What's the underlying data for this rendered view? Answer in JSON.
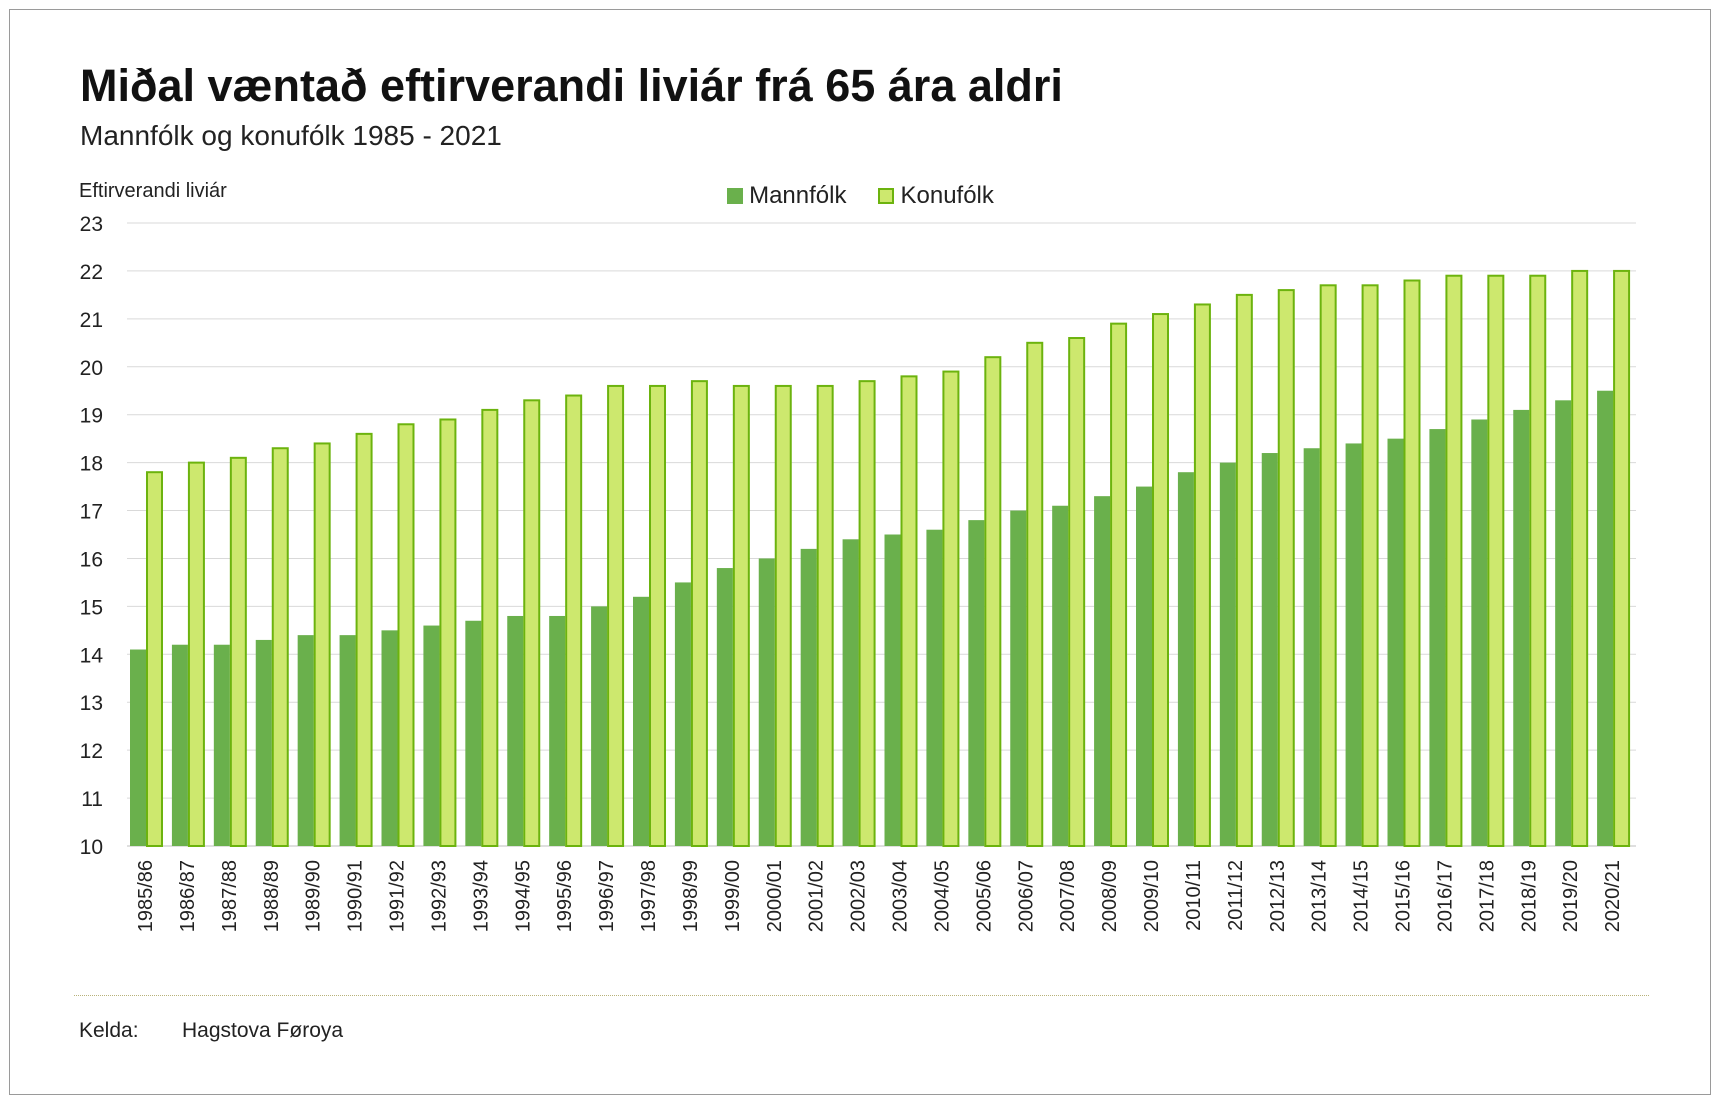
{
  "header": {
    "title": "Miðal væntað eftirverandi liviár frá 65 ára aldri",
    "subtitle": "Mannfólk og konufólk 1985 - 2021"
  },
  "footer": {
    "source_label": "Kelda:",
    "source_value": "Hagstova Føroya"
  },
  "colors": {
    "men": "#6ab04c",
    "women_fill": "#cde86e",
    "women_border": "#6cb30e",
    "grid": "#d9d9d9"
  },
  "chart_data": {
    "type": "bar",
    "title": "Miðal væntað eftirverandi liviár frá 65 ára aldri",
    "subtitle": "Mannfólk og konufólk 1985 - 2021",
    "ylabel": "Eftirverandi liviár",
    "xlabel": "",
    "ylim": [
      10,
      23
    ],
    "yticks": [
      "10",
      "11",
      "12",
      "13",
      "14",
      "15",
      "16",
      "17",
      "18",
      "19",
      "20",
      "21",
      "22",
      "23"
    ],
    "grid": true,
    "legend_position": "top-center",
    "categories": [
      "1985/86",
      "1986/87",
      "1987/88",
      "1988/89",
      "1989/90",
      "1990/91",
      "1991/92",
      "1992/93",
      "1993/94",
      "1994/95",
      "1995/96",
      "1996/97",
      "1997/98",
      "1998/99",
      "1999/00",
      "2000/01",
      "2001/02",
      "2002/03",
      "2003/04",
      "2004/05",
      "2005/06",
      "2006/07",
      "2007/08",
      "2008/09",
      "2009/10",
      "2010/11",
      "2011/12",
      "2012/13",
      "2013/14",
      "2014/15",
      "2015/16",
      "2016/17",
      "2017/18",
      "2018/19",
      "2019/20",
      "2020/21"
    ],
    "series": [
      {
        "name": "Mannfólk",
        "values": [
          14.1,
          14.2,
          14.2,
          14.3,
          14.4,
          14.4,
          14.5,
          14.6,
          14.7,
          14.8,
          14.8,
          15.0,
          15.2,
          15.5,
          15.8,
          16.0,
          16.2,
          16.4,
          16.5,
          16.6,
          16.8,
          17.0,
          17.1,
          17.3,
          17.5,
          17.8,
          18.0,
          18.2,
          18.3,
          18.4,
          18.5,
          18.7,
          18.9,
          19.1,
          19.3,
          19.5
        ]
      },
      {
        "name": "Konufólk",
        "values": [
          17.8,
          18.0,
          18.1,
          18.3,
          18.4,
          18.6,
          18.8,
          18.9,
          19.1,
          19.3,
          19.4,
          19.6,
          19.6,
          19.7,
          19.6,
          19.6,
          19.6,
          19.7,
          19.8,
          19.9,
          20.2,
          20.5,
          20.6,
          20.9,
          21.1,
          21.3,
          21.5,
          21.6,
          21.7,
          21.7,
          21.8,
          21.9,
          21.9,
          21.9,
          22.0,
          22.0
        ]
      }
    ]
  }
}
